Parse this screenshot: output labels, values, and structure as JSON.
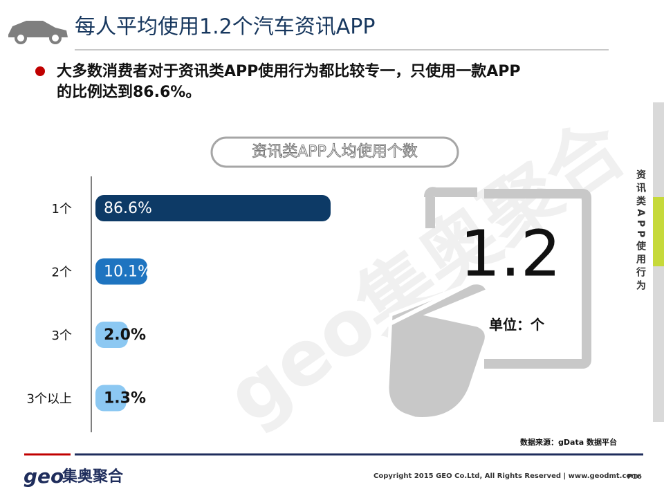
{
  "header": {
    "title": "每人平均使用1.2个汽车资讯APP"
  },
  "bullet": [
    "大多数消费者对于资讯类APP使用行为都比较专一，只使用一款APP",
    "的比例达到86.6%。"
  ],
  "chart_data": {
    "type": "bar",
    "orientation": "horizontal",
    "title": "资讯类APP人均使用个数",
    "categories": [
      "1个",
      "2个",
      "3个",
      "3个以上"
    ],
    "values": [
      86.6,
      10.1,
      2.0,
      1.3
    ],
    "value_labels": [
      "86.6%",
      "10.1%",
      "2.0%",
      "1.3%"
    ],
    "colors": [
      "#0d3a66",
      "#1e74c0",
      "#8cc8f2",
      "#8cc8f2"
    ],
    "annotation": {
      "value": "1.2",
      "unit": "单位：个"
    },
    "source": "数据来源：gData  数据平台"
  },
  "side_label": "资讯类APP使用行为",
  "watermark": "geo集奥聚合",
  "footer": {
    "logo_latin": "geo",
    "logo_cn": "集奥聚合",
    "copyright": "Copyright 2015 GEO Co.Ltd, All Rights Reserved  |  www.geodmt.com",
    "page": "P16"
  }
}
